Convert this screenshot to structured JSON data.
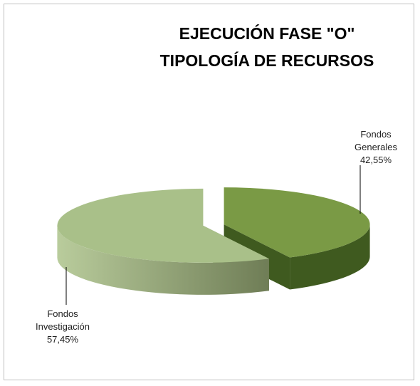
{
  "chart_data": {
    "type": "pie3d",
    "title": [
      "EJECUCIÓN FASE \"O\"",
      "TIPOLOGÍA DE RECURSOS"
    ],
    "categories": [
      "Fondos Generales",
      "Fondos Investigación"
    ],
    "values": [
      42.55,
      57.45
    ],
    "value_labels": [
      "42,55%",
      "57,45%"
    ],
    "colors": [
      "#7a9a45",
      "#a9c089"
    ],
    "side_colors": [
      "#3f5a1f",
      "#6f7d56"
    ]
  }
}
